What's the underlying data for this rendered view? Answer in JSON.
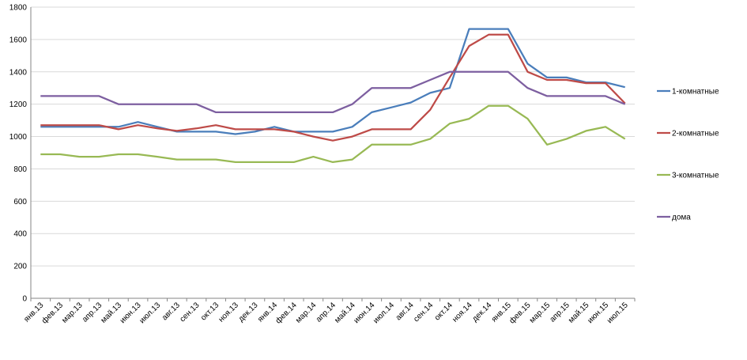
{
  "chart_data": {
    "type": "line",
    "categories": [
      "янв.13",
      "фев.13",
      "мар.13",
      "апр.13",
      "май.13",
      "июн.13",
      "июл.13",
      "авг.13",
      "сен.13",
      "окт.13",
      "ноя.13",
      "дек.13",
      "янв.14",
      "фев.14",
      "мар.14",
      "апр.14",
      "май.14",
      "июн.14",
      "июл.14",
      "авг.14",
      "сен.14",
      "окт.14",
      "ноя.14",
      "дек.14",
      "янв.15",
      "фев.15",
      "мар.15",
      "апр.15",
      "май.15",
      "июн.15",
      "июл.15"
    ],
    "yticks": [
      "0",
      "200",
      "400",
      "600",
      "800",
      "1000",
      "1200",
      "1400",
      "1600",
      "1800"
    ],
    "ylim": [
      0,
      1800
    ],
    "grid": "horizontal",
    "legend_position": "right",
    "series": [
      {
        "name": "1-комнатные",
        "color": "#4a7ebb",
        "values": [
          1060,
          1060,
          1060,
          1060,
          1060,
          1090,
          1060,
          1030,
          1030,
          1030,
          1015,
          1030,
          1060,
          1030,
          1030,
          1030,
          1060,
          1150,
          1180,
          1210,
          1270,
          1300,
          1665,
          1665,
          1665,
          1450,
          1365,
          1365,
          1335,
          1335,
          1305
        ]
      },
      {
        "name": "2-комнатные",
        "color": "#be4b48",
        "values": [
          1070,
          1070,
          1070,
          1070,
          1045,
          1070,
          1050,
          1035,
          1050,
          1070,
          1045,
          1045,
          1045,
          1030,
          1000,
          975,
          1000,
          1045,
          1045,
          1045,
          1165,
          1365,
          1560,
          1630,
          1630,
          1400,
          1350,
          1350,
          1330,
          1330,
          1205
        ]
      },
      {
        "name": "3-комнатные",
        "color": "#98b954",
        "values": [
          890,
          890,
          875,
          875,
          890,
          890,
          875,
          858,
          858,
          858,
          842,
          842,
          842,
          842,
          875,
          842,
          858,
          950,
          950,
          950,
          985,
          1080,
          1110,
          1190,
          1190,
          1110,
          950,
          985,
          1035,
          1060,
          985
        ]
      },
      {
        "name": "дома",
        "color": "#7d5fa0",
        "values": [
          1250,
          1250,
          1250,
          1250,
          1200,
          1200,
          1200,
          1200,
          1200,
          1150,
          1150,
          1150,
          1150,
          1150,
          1150,
          1150,
          1200,
          1300,
          1300,
          1300,
          1350,
          1400,
          1400,
          1400,
          1400,
          1300,
          1250,
          1250,
          1250,
          1250,
          1200
        ]
      }
    ]
  }
}
